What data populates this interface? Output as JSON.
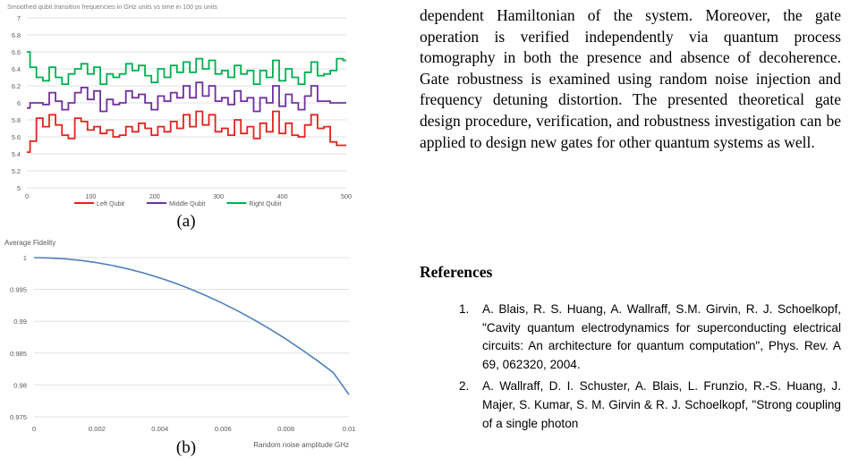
{
  "figure_a": {
    "caption": "(a)",
    "chart_data": {
      "type": "line",
      "title": "Smoothed qubit transition frequencies in GHz units vs time in 100 ps units",
      "xlim": [
        0,
        500
      ],
      "ylim": [
        5,
        7
      ],
      "x_ticks": [
        "0",
        "100",
        "200",
        "300",
        "400",
        "500"
      ],
      "y_ticks": [
        "5",
        "5.2",
        "5.4",
        "5.6",
        "5.8",
        "6",
        "6.2",
        "6.4",
        "6.6",
        "6.8",
        "7"
      ],
      "grid": true,
      "legend_position": "bottom",
      "series": [
        {
          "name": "Left Qubit",
          "color": "#e3231f",
          "x": [
            0,
            10,
            20,
            30,
            40,
            50,
            60,
            70,
            80,
            90,
            100,
            110,
            120,
            130,
            140,
            150,
            160,
            170,
            180,
            190,
            200,
            210,
            220,
            230,
            240,
            250,
            260,
            270,
            280,
            290,
            300,
            310,
            320,
            330,
            340,
            350,
            360,
            370,
            380,
            390,
            400,
            410,
            420,
            430,
            440,
            450,
            460,
            470,
            480,
            490,
            500
          ],
          "values": [
            5.42,
            5.55,
            5.82,
            5.72,
            5.86,
            5.74,
            5.62,
            5.58,
            5.82,
            5.78,
            5.68,
            5.72,
            5.64,
            5.68,
            5.6,
            5.62,
            5.72,
            5.66,
            5.76,
            5.7,
            5.62,
            5.72,
            5.66,
            5.78,
            5.7,
            5.86,
            5.72,
            5.9,
            5.74,
            5.86,
            5.66,
            5.7,
            5.62,
            5.8,
            5.64,
            5.72,
            5.58,
            5.76,
            5.66,
            5.9,
            5.64,
            5.76,
            5.62,
            5.6,
            5.74,
            5.86,
            5.7,
            5.72,
            5.54,
            5.5,
            5.5
          ]
        },
        {
          "name": "Middle Qubit",
          "color": "#7030a0",
          "x": [
            0,
            10,
            20,
            30,
            40,
            50,
            60,
            70,
            80,
            90,
            100,
            110,
            120,
            130,
            140,
            150,
            160,
            170,
            180,
            190,
            200,
            210,
            220,
            230,
            240,
            250,
            260,
            270,
            280,
            290,
            300,
            310,
            320,
            330,
            340,
            350,
            360,
            370,
            380,
            390,
            400,
            410,
            420,
            430,
            440,
            450,
            460,
            470,
            480,
            490,
            500
          ],
          "values": [
            5.94,
            6.0,
            6.0,
            5.98,
            6.12,
            6.02,
            5.92,
            6.0,
            6.12,
            6.18,
            6.04,
            6.14,
            5.9,
            6.04,
            5.98,
            6.0,
            6.14,
            6.06,
            6.1,
            6.0,
            5.92,
            6.08,
            6.02,
            6.12,
            6.06,
            6.2,
            6.06,
            6.24,
            6.08,
            6.2,
            6.02,
            6.06,
            5.98,
            6.14,
            6.02,
            6.06,
            5.9,
            6.06,
            6.0,
            6.2,
            5.96,
            6.1,
            6.0,
            5.92,
            6.08,
            6.2,
            6.02,
            6.02,
            6.0,
            6.0,
            6.0
          ]
        },
        {
          "name": "Right Qubit",
          "color": "#00b050",
          "x": [
            0,
            10,
            20,
            30,
            40,
            50,
            60,
            70,
            80,
            90,
            100,
            110,
            120,
            130,
            140,
            150,
            160,
            170,
            180,
            190,
            200,
            210,
            220,
            230,
            240,
            250,
            260,
            270,
            280,
            290,
            300,
            310,
            320,
            330,
            340,
            350,
            360,
            370,
            380,
            390,
            400,
            410,
            420,
            430,
            440,
            450,
            460,
            470,
            480,
            490,
            500
          ],
          "values": [
            6.6,
            6.42,
            6.3,
            6.26,
            6.42,
            6.3,
            6.22,
            6.34,
            6.4,
            6.46,
            6.34,
            6.42,
            6.22,
            6.34,
            6.3,
            6.34,
            6.46,
            6.38,
            6.44,
            6.32,
            6.24,
            6.4,
            6.3,
            6.44,
            6.36,
            6.48,
            6.36,
            6.52,
            6.4,
            6.5,
            6.34,
            6.38,
            6.3,
            6.44,
            6.34,
            6.38,
            6.22,
            6.38,
            6.3,
            6.5,
            6.26,
            6.4,
            6.3,
            6.22,
            6.36,
            6.48,
            6.32,
            6.34,
            6.38,
            6.52,
            6.5
          ]
        }
      ]
    }
  },
  "figure_b": {
    "caption": "(b)",
    "chart_data": {
      "type": "line",
      "ylabel": "Average Fidelity",
      "xlabel": "Random noise amplitude GHz",
      "xlim": [
        0,
        0.01
      ],
      "ylim": [
        0.975,
        1
      ],
      "x_ticks": [
        "0",
        "0.002",
        "0.004",
        "0.006",
        "0.008",
        "0.01"
      ],
      "y_ticks": [
        "0.975",
        "0.98",
        "0.985",
        "0.99",
        "0.995",
        "1"
      ],
      "grid": true,
      "series": [
        {
          "color": "#4f81bd",
          "x": [
            0,
            0.0005,
            0.001,
            0.0015,
            0.002,
            0.0025,
            0.003,
            0.0035,
            0.004,
            0.0045,
            0.005,
            0.0055,
            0.006,
            0.0065,
            0.007,
            0.0075,
            0.008,
            0.0085,
            0.009,
            0.0095,
            0.01
          ],
          "values": [
            1.0,
            0.99995,
            0.9998,
            0.99955,
            0.9992,
            0.99875,
            0.9982,
            0.99755,
            0.9968,
            0.99595,
            0.995,
            0.99395,
            0.9928,
            0.99155,
            0.9902,
            0.98875,
            0.9872,
            0.98555,
            0.9838,
            0.98195,
            0.9785
          ]
        }
      ]
    }
  },
  "text": {
    "paragraph": "dependent Hamiltonian of the system. Moreover, the gate operation is verified independently via quantum process tomography in both the presence and absence of decoherence. Gate robustness is examined using random noise injection and frequency detuning distortion. The presented theoretical gate design procedure, verification, and robustness investigation can be applied to design new gates for other quantum systems as well.",
    "references_heading": "References",
    "references": [
      {
        "num": "1.",
        "text": "A. Blais, R. S. Huang, A. Wallraff, S.M. Girvin, R. J. Schoelkopf, \"Cavity quantum electrodynamics for superconducting electrical circuits: An architecture for quantum computation\", Phys. Rev. A 69, 062320, 2004."
      },
      {
        "num": "2.",
        "text": "A. Wallraff, D. I. Schuster, A. Blais, L. Frunzio, R.-S. Huang, J. Majer, S. Kumar, S. M. Girvin & R. J. Schoelkopf, \"Strong coupling of a single photon"
      }
    ]
  }
}
